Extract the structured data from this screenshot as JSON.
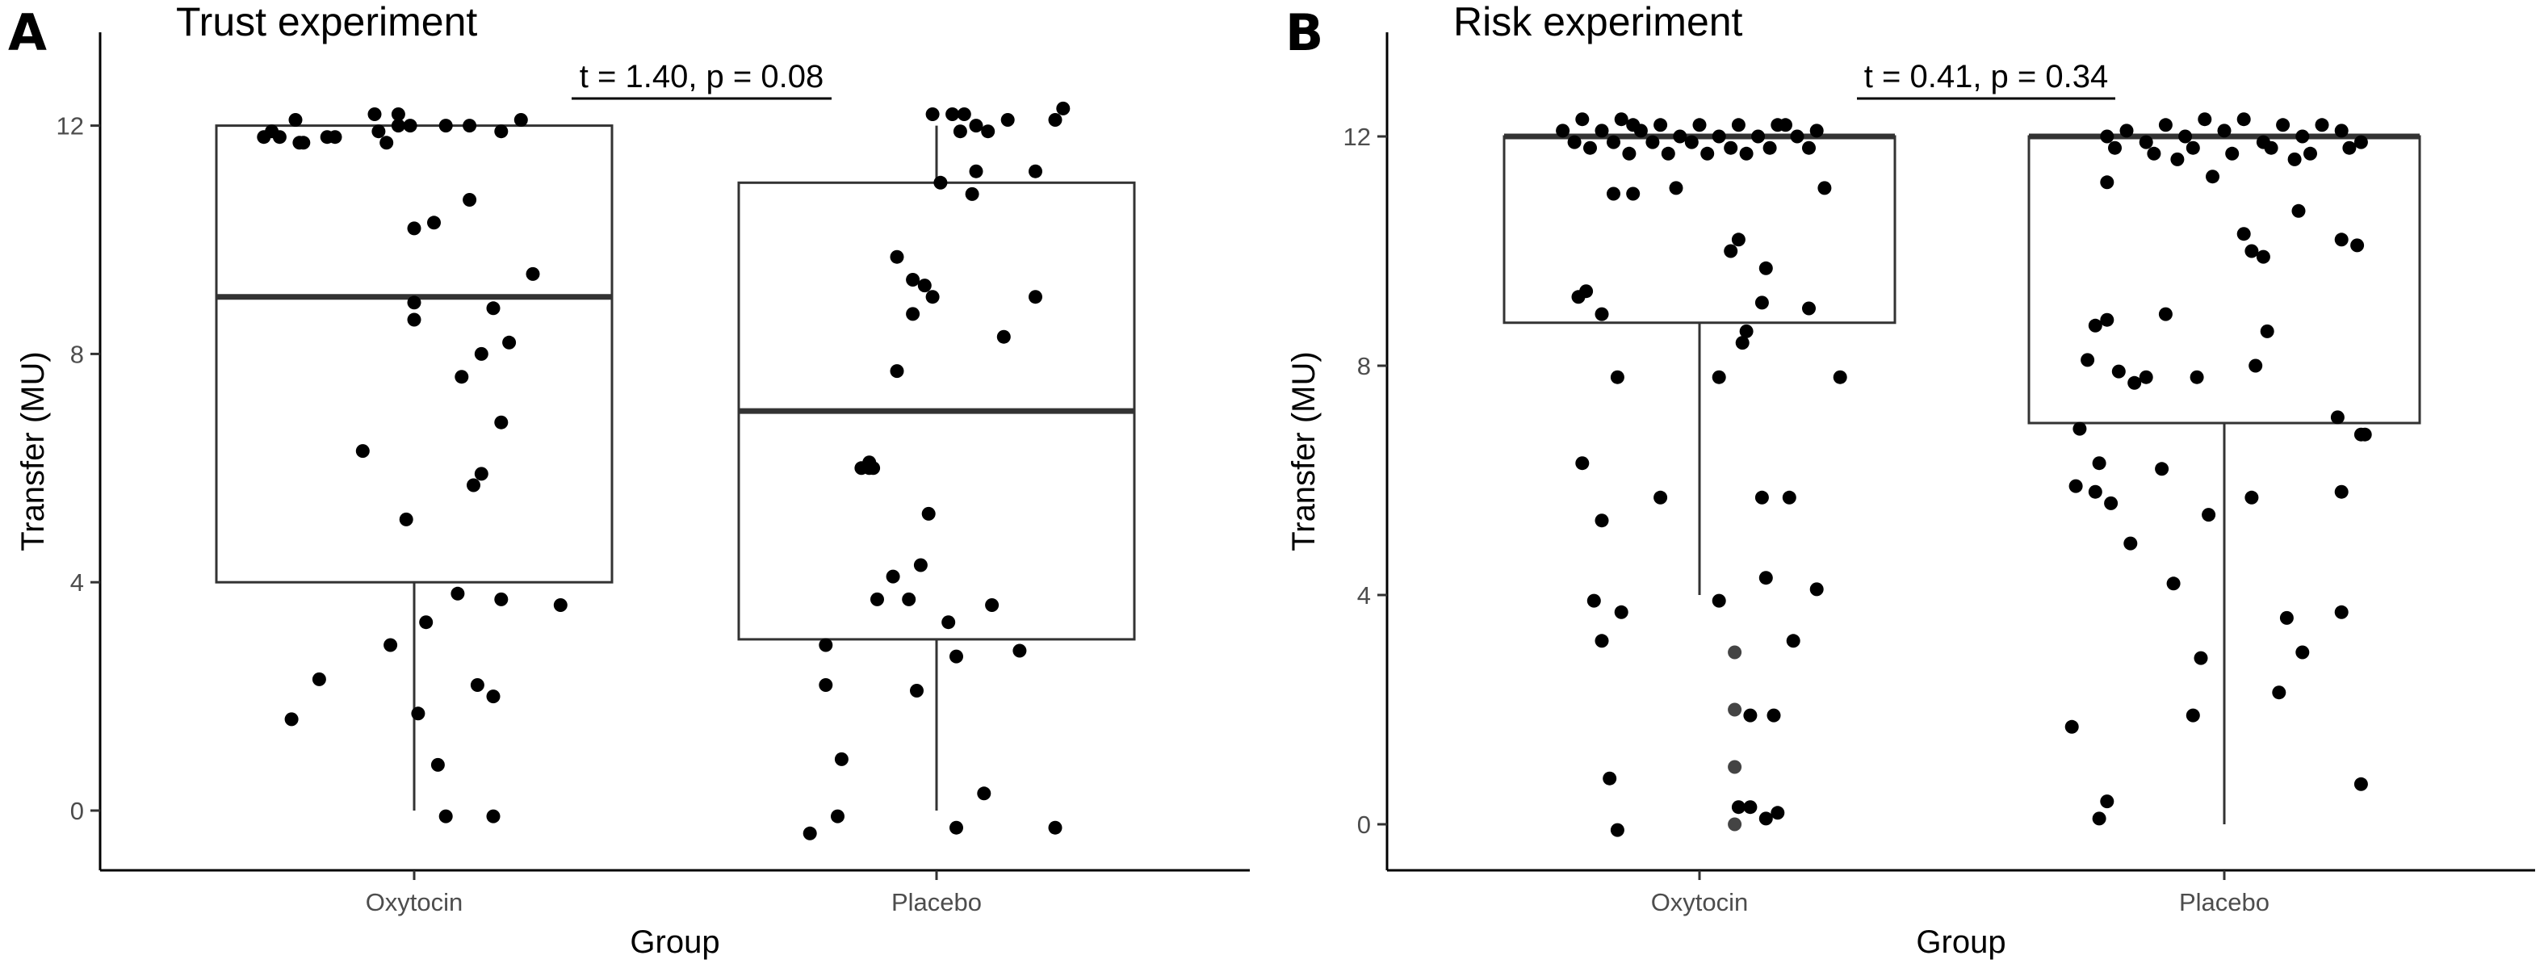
{
  "chart_data": [
    {
      "type": "box",
      "panel_label": "A",
      "title": "Trust experiment",
      "xlabel": "Group",
      "ylabel": "Transfer (MU)",
      "ylim": [
        -0.5,
        13.2
      ],
      "yticks": [
        0,
        4,
        8,
        12
      ],
      "ytick_labels": [
        "0",
        "4",
        "8",
        "12"
      ],
      "categories": [
        "Oxytocin",
        "Placebo"
      ],
      "annotation": "t = 1.40, p = 0.08",
      "boxes": [
        {
          "group": "Oxytocin",
          "min": 0,
          "q1": 4,
          "median": 9,
          "q3": 12,
          "max": 12
        },
        {
          "group": "Placebo",
          "min": 0,
          "q1": 3,
          "median": 7,
          "q3": 11,
          "max": 12
        }
      ],
      "points": [
        {
          "group": "Oxytocin",
          "y": [
            12.2,
            12.1,
            12.0,
            12.0,
            11.9,
            11.9,
            11.8,
            11.8,
            11.8,
            11.8,
            11.7,
            11.7,
            12.0,
            12.0,
            11.9,
            12.1,
            12.2,
            11.7,
            10.7,
            10.3,
            10.2,
            9.4,
            8.9,
            8.8,
            8.6,
            8.2,
            8.0,
            7.6,
            6.8,
            6.3,
            5.9,
            5.7,
            5.1,
            3.8,
            3.7,
            3.6,
            3.3,
            2.9,
            2.3,
            2.2,
            2.0,
            1.7,
            1.6,
            0.8,
            -0.1,
            -0.1
          ],
          "jitter": [
            0.46,
            0.2,
            0.58,
            0.64,
            0.72,
            0.14,
            0.16,
            0.12,
            0.3,
            0.28,
            0.22,
            0.21,
            0.46,
            0.49,
            0.41,
            0.77,
            0.4,
            0.43,
            0.64,
            0.55,
            0.5,
            0.8,
            0.5,
            0.7,
            0.5,
            0.74,
            0.67,
            0.62,
            0.72,
            0.37,
            0.67,
            0.65,
            0.48,
            0.61,
            0.72,
            0.87,
            0.53,
            0.44,
            0.26,
            0.66,
            0.7,
            0.51,
            0.19,
            0.56,
            0.7,
            0.58
          ]
        },
        {
          "group": "Placebo",
          "y": [
            12.3,
            12.2,
            12.2,
            12.2,
            12.1,
            12.1,
            12.0,
            11.9,
            11.9,
            11.2,
            11.2,
            11.0,
            10.8,
            9.7,
            9.3,
            9.2,
            9.0,
            9.0,
            8.7,
            8.3,
            7.7,
            6.1,
            6.0,
            6.0,
            6.0,
            5.2,
            4.3,
            4.1,
            3.7,
            3.7,
            3.6,
            3.3,
            2.9,
            2.8,
            2.7,
            2.2,
            2.1,
            0.9,
            0.3,
            -0.1,
            -0.3,
            -0.3,
            -0.4
          ],
          "jitter": [
            0.82,
            0.49,
            0.54,
            0.57,
            0.8,
            0.68,
            0.6,
            0.63,
            0.56,
            0.6,
            0.75,
            0.51,
            0.59,
            0.4,
            0.44,
            0.47,
            0.49,
            0.75,
            0.44,
            0.67,
            0.4,
            0.33,
            0.31,
            0.34,
            0.33,
            0.48,
            0.46,
            0.39,
            0.35,
            0.43,
            0.64,
            0.53,
            0.22,
            0.71,
            0.55,
            0.22,
            0.45,
            0.26,
            0.62,
            0.25,
            0.55,
            0.8,
            0.18
          ]
        }
      ]
    },
    {
      "type": "box",
      "panel_label": "B",
      "title": "Risk experiment",
      "xlabel": "Group",
      "ylabel": "Transfer (MU)",
      "ylim": [
        -0.5,
        13.2
      ],
      "yticks": [
        0,
        4,
        8,
        12
      ],
      "ytick_labels": [
        "0",
        "4",
        "8",
        "12"
      ],
      "categories": [
        "Oxytocin",
        "Placebo"
      ],
      "annotation": "t = 0.41, p = 0.34",
      "boxes": [
        {
          "group": "Oxytocin",
          "min": 4,
          "q1": 8.75,
          "median": 12,
          "q3": 12,
          "max": 12
        },
        {
          "group": "Placebo",
          "min": 0,
          "q1": 7,
          "median": 12,
          "q3": 12,
          "max": 12
        }
      ],
      "points": [
        {
          "group": "Oxytocin",
          "y": [
            12.3,
            12.3,
            12.2,
            12.2,
            12.2,
            12.2,
            12.1,
            12.1,
            12.1,
            12.1,
            12.0,
            12.0,
            12.0,
            12.0,
            11.9,
            11.9,
            11.9,
            11.9,
            11.8,
            11.8,
            11.8,
            11.8,
            11.7,
            11.7,
            11.7,
            11.7,
            12.2,
            12.2,
            11.0,
            11.0,
            11.1,
            11.1,
            10.2,
            10.0,
            9.7,
            9.3,
            9.2,
            9.1,
            9.0,
            8.9,
            8.6,
            8.4,
            7.8,
            7.8,
            7.8,
            6.3,
            5.7,
            5.7,
            5.7,
            5.3,
            4.3,
            4.1,
            3.9,
            3.9,
            3.7,
            3.2,
            3.2,
            3.0,
            2.0,
            1.9,
            1.9,
            1.0,
            0.8,
            0.3,
            0.3,
            0.2,
            0.1,
            0.0,
            -0.1
          ],
          "jitter": [
            0.2,
            0.3,
            0.4,
            0.5,
            0.6,
            0.7,
            0.8,
            0.15,
            0.25,
            0.35,
            0.45,
            0.55,
            0.65,
            0.75,
            0.18,
            0.28,
            0.38,
            0.48,
            0.58,
            0.68,
            0.78,
            0.22,
            0.32,
            0.42,
            0.52,
            0.62,
            0.33,
            0.72,
            0.28,
            0.33,
            0.44,
            0.82,
            0.6,
            0.58,
            0.67,
            0.21,
            0.19,
            0.66,
            0.78,
            0.25,
            0.62,
            0.61,
            0.29,
            0.55,
            0.86,
            0.2,
            0.4,
            0.66,
            0.73,
            0.25,
            0.67,
            0.8,
            0.23,
            0.55,
            0.3,
            0.25,
            0.74,
            0.59,
            0.59,
            0.63,
            0.69,
            0.59,
            0.27,
            0.6,
            0.63,
            0.7,
            0.67,
            0.59,
            0.29
          ],
          "shade": [
            1,
            1,
            1,
            1,
            1,
            1,
            1,
            1,
            1,
            1,
            1,
            1,
            1,
            1,
            1,
            1,
            1,
            1,
            1,
            1,
            1,
            1,
            1,
            1,
            1,
            1,
            1,
            1,
            1,
            1,
            1,
            1,
            1,
            1,
            1,
            1,
            1,
            1,
            1,
            1,
            1,
            1,
            1,
            1,
            1,
            1,
            1,
            1,
            1,
            1,
            1,
            1,
            1,
            1,
            1,
            1,
            1,
            0,
            0,
            1,
            1,
            0,
            1,
            1,
            1,
            1,
            1,
            0,
            1
          ]
        },
        {
          "group": "Placebo",
          "y": [
            12.3,
            12.3,
            12.2,
            12.2,
            12.2,
            12.1,
            12.1,
            12.1,
            12.0,
            12.0,
            12.0,
            11.9,
            11.9,
            11.9,
            11.8,
            11.8,
            11.8,
            11.8,
            11.7,
            11.7,
            11.7,
            11.6,
            11.6,
            11.3,
            11.2,
            10.7,
            10.3,
            10.2,
            10.1,
            10.0,
            9.9,
            8.9,
            8.8,
            8.7,
            8.6,
            8.1,
            8.0,
            7.9,
            7.8,
            7.8,
            7.7,
            7.1,
            6.9,
            6.8,
            6.8,
            6.3,
            6.2,
            5.9,
            5.8,
            5.8,
            5.7,
            5.6,
            5.4,
            4.9,
            4.2,
            3.7,
            3.6,
            3.0,
            2.9,
            2.3,
            1.9,
            1.7,
            0.7,
            0.4,
            0.1
          ],
          "jitter": [
            0.45,
            0.55,
            0.35,
            0.65,
            0.75,
            0.25,
            0.5,
            0.8,
            0.2,
            0.4,
            0.7,
            0.3,
            0.6,
            0.85,
            0.22,
            0.42,
            0.62,
            0.82,
            0.32,
            0.52,
            0.72,
            0.38,
            0.68,
            0.47,
            0.2,
            0.69,
            0.55,
            0.8,
            0.84,
            0.57,
            0.6,
            0.35,
            0.2,
            0.17,
            0.61,
            0.15,
            0.58,
            0.23,
            0.43,
            0.3,
            0.27,
            0.79,
            0.13,
            0.86,
            0.85,
            0.18,
            0.34,
            0.12,
            0.17,
            0.8,
            0.57,
            0.21,
            0.46,
            0.26,
            0.37,
            0.8,
            0.66,
            0.7,
            0.44,
            0.64,
            0.42,
            0.11,
            0.85,
            0.2,
            0.18
          ]
        }
      ]
    }
  ]
}
